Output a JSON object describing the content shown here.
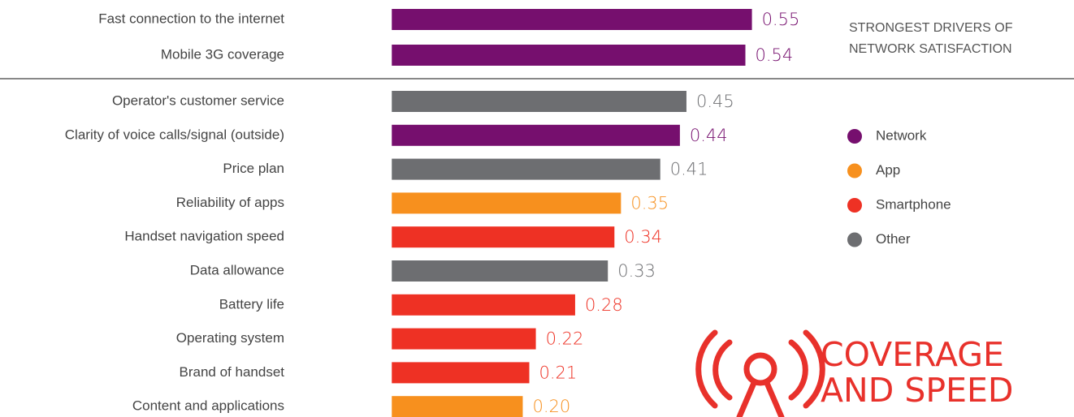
{
  "chart_data": {
    "type": "bar",
    "orientation": "horizontal",
    "categories": [
      "Fast connection to the internet",
      "Mobile 3G coverage",
      "Operator's customer service",
      "Clarity of voice calls/signal (outside)",
      "Price plan",
      "Reliability of apps",
      "Handset navigation speed",
      "Data allowance",
      "Battery life",
      "Operating system",
      "Brand of handset",
      "Content and applications"
    ],
    "values": [
      0.55,
      0.54,
      0.45,
      0.44,
      0.41,
      0.35,
      0.34,
      0.33,
      0.28,
      0.22,
      0.21,
      0.2
    ],
    "value_labels": [
      "0.55",
      "0.54",
      "0.45",
      "0.44",
      "0.41",
      "0.35",
      "0.34",
      "0.33",
      "0.28",
      "0.22",
      "0.21",
      "0.20"
    ],
    "colors": [
      "#760f6e",
      "#760f6e",
      "#6d6e71",
      "#760f6e",
      "#6d6e71",
      "#f7901e",
      "#ee3124",
      "#6d6e71",
      "#ee3124",
      "#ee3124",
      "#ee3124",
      "#f7901e"
    ],
    "xlim": [
      -0.143,
      0.656
    ],
    "legend": [
      {
        "name": "Network",
        "color": "#760f6e"
      },
      {
        "name": "App",
        "color": "#f7901e"
      },
      {
        "name": "Smartphone",
        "color": "#ee3124"
      },
      {
        "name": "Other",
        "color": "#6d6e71"
      }
    ],
    "annotation": [
      "STRONGEST DRIVERS OF",
      "NETWORK SATISFACTION"
    ],
    "logo_text": [
      "COVERAGE",
      "AND SPEED"
    ]
  }
}
